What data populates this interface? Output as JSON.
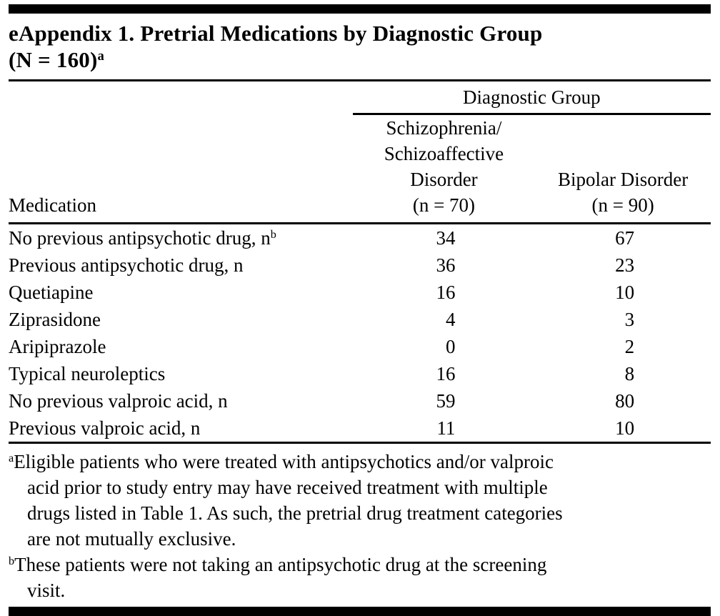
{
  "title": {
    "text": "eAppendix 1. Pretrial Medications by Diagnostic Group\n(N = 160)",
    "sup": "a"
  },
  "table": {
    "group_header": "Diagnostic Group",
    "columns": {
      "medication": "Medication",
      "schizophrenia": "Schizophrenia/\nSchizoaffective\nDisorder\n(n = 70)",
      "bipolar": "Bipolar Disorder\n(n = 90)"
    },
    "rows": [
      {
        "label": "No previous antipsychotic drug, n",
        "sup": "b",
        "schizophrenia": "34",
        "bipolar": "67"
      },
      {
        "label": "Previous antipsychotic drug, n",
        "sup": "",
        "schizophrenia": "36",
        "bipolar": "23"
      },
      {
        "label": "Quetiapine",
        "sup": "",
        "schizophrenia": "16",
        "bipolar": "10"
      },
      {
        "label": "Ziprasidone",
        "sup": "",
        "schizophrenia": "4",
        "bipolar": "3"
      },
      {
        "label": "Aripiprazole",
        "sup": "",
        "schizophrenia": "0",
        "bipolar": "2"
      },
      {
        "label": "Typical neuroleptics",
        "sup": "",
        "schizophrenia": "16",
        "bipolar": "8"
      },
      {
        "label": "No previous valproic acid, n",
        "sup": "",
        "schizophrenia": "59",
        "bipolar": "80"
      },
      {
        "label": "Previous valproic acid, n",
        "sup": "",
        "schizophrenia": "11",
        "bipolar": "10"
      }
    ]
  },
  "footnotes": [
    {
      "marker": "a",
      "text": "Eligible patients who were treated with antipsychotics and/or valproic\nacid prior to study entry may have received treatment with multiple\ndrugs listed in Table 1. As such, the pretrial drug treatment categories\nare not mutually exclusive."
    },
    {
      "marker": "b",
      "text": "These patients were not taking an antipsychotic drug at the screening\nvisit."
    }
  ],
  "colors": {
    "text": "#000000",
    "background": "#ffffff",
    "rule": "#000000"
  }
}
